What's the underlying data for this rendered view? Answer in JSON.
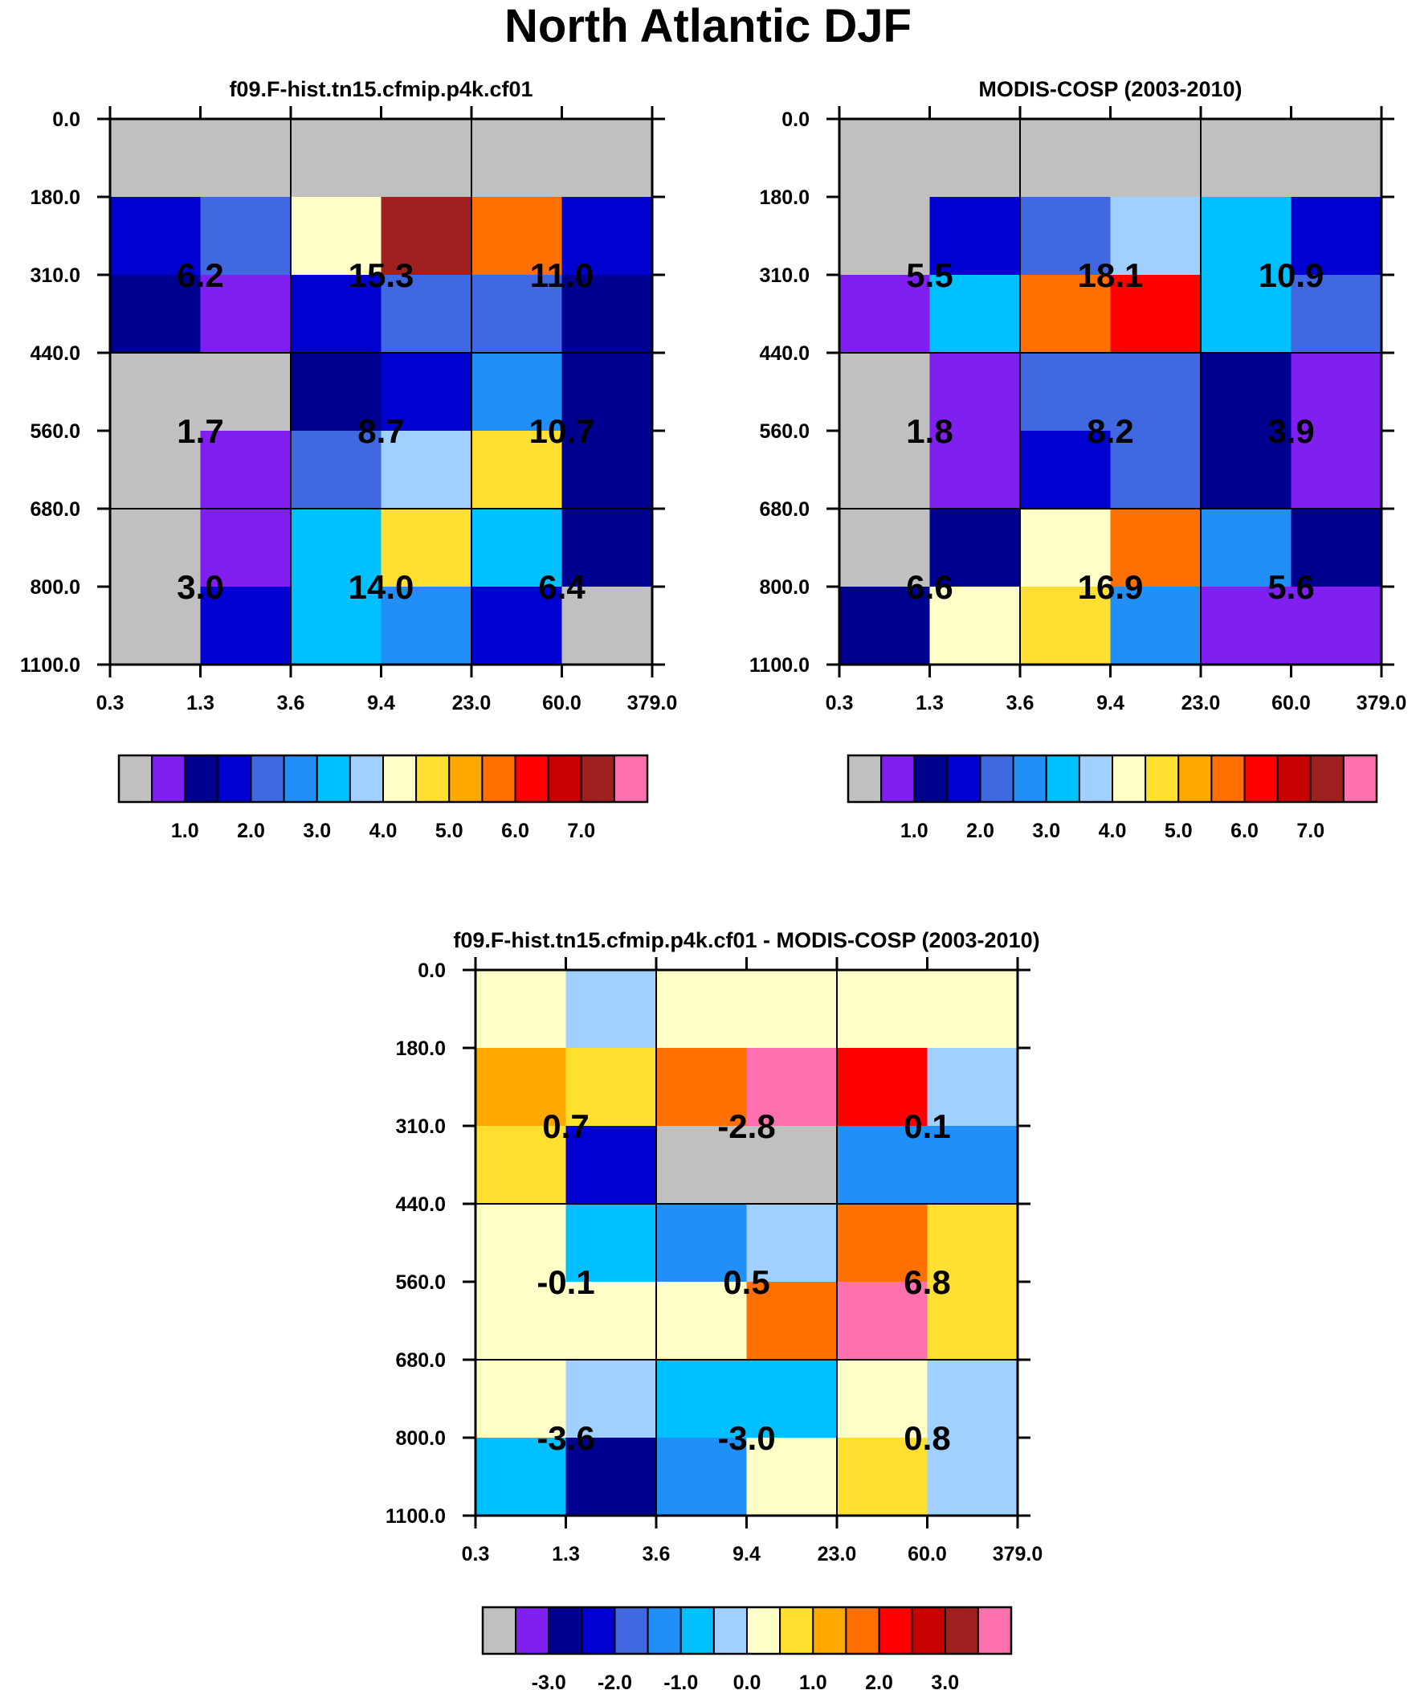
{
  "title": "North Atlantic DJF",
  "chart_data": [
    {
      "type": "heatmap",
      "title": "f09.F-hist.tn15.cfmip.p4k.cf01",
      "x_ticks": [
        "0.3",
        "1.3",
        "3.6",
        "9.4",
        "23.0",
        "60.0",
        "379.0"
      ],
      "y_ticks": [
        "0.0",
        "180.0",
        "310.0",
        "440.0",
        "560.0",
        "680.0",
        "800.0",
        "1100.0"
      ],
      "cells": [
        [
          "gray",
          "gray",
          "gray",
          "gray",
          "gray",
          "gray"
        ],
        [
          "blue2",
          "royal",
          "lightyellow",
          "brown",
          "orange",
          "blue2"
        ],
        [
          "navy",
          "purple",
          "blue2",
          "royal",
          "royal",
          "navy"
        ],
        [
          "gray",
          "gray",
          "navy",
          "blue2",
          "dodger",
          "navy"
        ],
        [
          "gray",
          "purple",
          "royal",
          "lightblue",
          "gold",
          "navy"
        ],
        [
          "gray",
          "purple",
          "cyan",
          "gold",
          "cyan",
          "navy"
        ],
        [
          "gray",
          "blue2",
          "cyan",
          "dodger",
          "blue2",
          "gray"
        ]
      ],
      "block_values": [
        [
          "6.2",
          "15.3",
          "11.0"
        ],
        [
          "1.7",
          "8.7",
          "10.7"
        ],
        [
          "3.0",
          "14.0",
          "6.4"
        ]
      ],
      "colorbar": {
        "colors": [
          "gray",
          "purple",
          "navy",
          "blue2",
          "royal",
          "dodger",
          "cyan",
          "lightblue",
          "lightyellow",
          "gold",
          "amber",
          "orange",
          "red",
          "darkred",
          "brown",
          "pink"
        ],
        "labels": [
          "1.0",
          "2.0",
          "3.0",
          "4.0",
          "5.0",
          "6.0",
          "7.0"
        ]
      }
    },
    {
      "type": "heatmap",
      "title": "MODIS-COSP (2003-2010)",
      "x_ticks": [
        "0.3",
        "1.3",
        "3.6",
        "9.4",
        "23.0",
        "60.0",
        "379.0"
      ],
      "y_ticks": [
        "0.0",
        "180.0",
        "310.0",
        "440.0",
        "560.0",
        "680.0",
        "800.0",
        "1100.0"
      ],
      "cells": [
        [
          "gray",
          "gray",
          "gray",
          "gray",
          "gray",
          "gray"
        ],
        [
          "gray",
          "blue2",
          "royal",
          "lightblue",
          "cyan",
          "blue2"
        ],
        [
          "purple",
          "cyan",
          "orange",
          "red",
          "cyan",
          "royal"
        ],
        [
          "gray",
          "purple",
          "royal",
          "royal",
          "navy",
          "purple"
        ],
        [
          "gray",
          "purple",
          "blue2",
          "royal",
          "navy",
          "purple"
        ],
        [
          "gray",
          "navy",
          "lightyellow",
          "orange",
          "dodger",
          "navy"
        ],
        [
          "navy",
          "lightyellow",
          "gold",
          "dodger",
          "purple",
          "purple"
        ]
      ],
      "block_values": [
        [
          "5.5",
          "18.1",
          "10.9"
        ],
        [
          "1.8",
          "8.2",
          "3.9"
        ],
        [
          "6.6",
          "16.9",
          "5.6"
        ]
      ],
      "colorbar": {
        "colors": [
          "gray",
          "purple",
          "navy",
          "blue2",
          "royal",
          "dodger",
          "cyan",
          "lightblue",
          "lightyellow",
          "gold",
          "amber",
          "orange",
          "red",
          "darkred",
          "brown",
          "pink"
        ],
        "labels": [
          "1.0",
          "2.0",
          "3.0",
          "4.0",
          "5.0",
          "6.0",
          "7.0"
        ]
      }
    },
    {
      "type": "heatmap",
      "title": "f09.F-hist.tn15.cfmip.p4k.cf01 - MODIS-COSP (2003-2010)",
      "x_ticks": [
        "0.3",
        "1.3",
        "3.6",
        "9.4",
        "23.0",
        "60.0",
        "379.0"
      ],
      "y_ticks": [
        "0.0",
        "180.0",
        "310.0",
        "440.0",
        "560.0",
        "680.0",
        "800.0",
        "1100.0"
      ],
      "cells": [
        [
          "lightyellow",
          "lightblue",
          "lightyellow",
          "lightyellow",
          "lightyellow",
          "lightyellow"
        ],
        [
          "amber",
          "gold",
          "orange",
          "pink",
          "red",
          "lightblue"
        ],
        [
          "gold",
          "blue2",
          "gray",
          "gray",
          "dodger",
          "dodger"
        ],
        [
          "lightyellow",
          "cyan",
          "dodger",
          "lightblue",
          "orange",
          "gold"
        ],
        [
          "lightyellow",
          "lightyellow",
          "lightyellow",
          "orange",
          "pink",
          "gold"
        ],
        [
          "lightyellow",
          "lightblue",
          "cyan",
          "cyan",
          "lightyellow",
          "lightblue"
        ],
        [
          "cyan",
          "navy",
          "dodger",
          "lightyellow",
          "gold",
          "lightblue"
        ]
      ],
      "block_values": [
        [
          "0.7",
          "-2.8",
          "0.1"
        ],
        [
          "-0.1",
          "0.5",
          "6.8"
        ],
        [
          "-3.6",
          "-3.0",
          "0.8"
        ]
      ],
      "colorbar": {
        "colors": [
          "gray",
          "purple",
          "navy",
          "blue2",
          "royal",
          "dodger",
          "cyan",
          "lightblue",
          "lightyellow",
          "gold",
          "amber",
          "orange",
          "red",
          "darkred",
          "brown",
          "pink"
        ],
        "labels": [
          "-3.0",
          "-2.0",
          "-1.0",
          "0.0",
          "1.0",
          "2.0",
          "3.0"
        ]
      }
    }
  ],
  "palette": {
    "gray": "#c0c0c0",
    "purple": "#8020f0",
    "navy": "#000090",
    "blue2": "#0000d0",
    "royal": "#4068e0",
    "dodger": "#2090f8",
    "cyan": "#00c0ff",
    "lightblue": "#a0d0ff",
    "lightyellow": "#ffffc8",
    "gold": "#ffe030",
    "amber": "#ffa800",
    "orange": "#ff7000",
    "red": "#ff0000",
    "darkred": "#c80000",
    "brown": "#a02020",
    "pink": "#ff70b0"
  }
}
